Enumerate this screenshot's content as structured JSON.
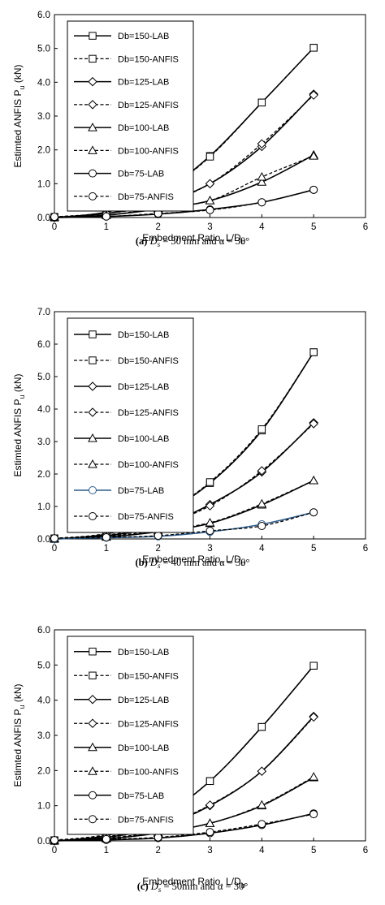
{
  "chart_data": [
    {
      "type": "line",
      "caption_letter": "(a)",
      "caption_sym": "D",
      "caption_sub": "s",
      "caption_rest": " = 30 mm and α = 30°",
      "xlabel_main": "Embedment Ratio, L/D",
      "xlabel_sub": "b",
      "ylabel_main": "Estimted ANFIS  P",
      "ylabel_sub": "u",
      "ylabel_unit": " (kN)",
      "xlim": [
        0,
        6
      ],
      "ylim": [
        0,
        6
      ],
      "x_ticks": [
        "0",
        "1",
        "2",
        "3",
        "4",
        "5",
        "6"
      ],
      "y_ticks": [
        "0.0",
        "1.0",
        "2.0",
        "3.0",
        "4.0",
        "5.0",
        "6.0"
      ],
      "x": [
        0,
        1,
        2,
        3,
        4,
        5
      ],
      "series": [
        {
          "name": "Db=150-LAB",
          "marker": "square",
          "dash": "solid",
          "color": "#000000",
          "values": [
            0.0,
            0.16,
            0.67,
            1.82,
            3.4,
            5.02
          ]
        },
        {
          "name": "Db=150-ANFIS",
          "marker": "square",
          "dash": "dashed",
          "color": "#000000",
          "values": [
            0.02,
            0.16,
            0.66,
            1.8,
            3.4,
            5.02
          ]
        },
        {
          "name": "Db=125-LAB",
          "marker": "diamond",
          "dash": "solid",
          "color": "#000000",
          "values": [
            0.0,
            0.12,
            0.4,
            1.0,
            2.1,
            3.65
          ]
        },
        {
          "name": "Db=125-ANFIS",
          "marker": "diamond",
          "dash": "dashed",
          "color": "#000000",
          "values": [
            0.02,
            0.12,
            0.38,
            1.0,
            2.18,
            3.62
          ]
        },
        {
          "name": "Db=100-LAB",
          "marker": "triangle",
          "dash": "solid",
          "color": "#000000",
          "values": [
            0.0,
            0.07,
            0.25,
            0.5,
            1.05,
            1.85
          ]
        },
        {
          "name": "Db=100-ANFIS",
          "marker": "triangle",
          "dash": "dashed",
          "color": "#000000",
          "values": [
            0.02,
            0.07,
            0.28,
            0.5,
            1.2,
            1.82
          ]
        },
        {
          "name": "Db=75-LAB",
          "marker": "circle",
          "dash": "solid",
          "color": "#000000",
          "values": [
            0.0,
            0.03,
            0.1,
            0.24,
            0.45,
            0.82
          ]
        },
        {
          "name": "Db=75-ANFIS",
          "marker": "circle",
          "dash": "dashed",
          "color": "#000000",
          "values": [
            0.02,
            0.03,
            0.12,
            0.22,
            0.45,
            0.82
          ]
        }
      ]
    },
    {
      "type": "line",
      "caption_letter": "(b)",
      "caption_sym": "D",
      "caption_sub": "s",
      "caption_rest": " = 40 mm and α = 30°",
      "xlabel_main": "Embedment Ratio, L/D",
      "xlabel_sub": "b",
      "ylabel_main": "Estimted ANFIS  P",
      "ylabel_sub": "u",
      "ylabel_unit": " (kN)",
      "xlim": [
        0,
        6
      ],
      "ylim": [
        0,
        7
      ],
      "x_ticks": [
        "0",
        "1",
        "2",
        "3",
        "4",
        "5",
        "6"
      ],
      "y_ticks": [
        "0.0",
        "1.0",
        "2.0",
        "3.0",
        "4.0",
        "5.0",
        "6.0",
        "7.0"
      ],
      "x": [
        0,
        1,
        2,
        3,
        4,
        5
      ],
      "series": [
        {
          "name": "Db=150-LAB",
          "marker": "square",
          "dash": "solid",
          "color": "#000000",
          "values": [
            0.0,
            0.15,
            0.7,
            1.72,
            3.34,
            5.75
          ]
        },
        {
          "name": "Db=150-ANFIS",
          "marker": "square",
          "dash": "dashed",
          "color": "#000000",
          "values": [
            0.02,
            0.17,
            0.7,
            1.75,
            3.38,
            5.75
          ]
        },
        {
          "name": "Db=125-LAB",
          "marker": "diamond",
          "dash": "solid",
          "color": "#000000",
          "values": [
            0.0,
            0.1,
            0.38,
            1.06,
            2.06,
            3.58
          ]
        },
        {
          "name": "Db=125-ANFIS",
          "marker": "diamond",
          "dash": "dashed",
          "color": "#000000",
          "values": [
            0.02,
            0.12,
            0.4,
            1.02,
            2.1,
            3.55
          ]
        },
        {
          "name": "Db=100-LAB",
          "marker": "triangle",
          "dash": "solid",
          "color": "#000000",
          "values": [
            0.0,
            0.06,
            0.22,
            0.48,
            1.05,
            1.8
          ]
        },
        {
          "name": "Db=100-ANFIS",
          "marker": "triangle",
          "dash": "dashed",
          "color": "#000000",
          "values": [
            0.02,
            0.08,
            0.26,
            0.5,
            1.08,
            1.8
          ]
        },
        {
          "name": "Db=75-LAB",
          "marker": "circle",
          "dash": "solid",
          "color": "#2e5d8c",
          "values": [
            0.0,
            0.04,
            0.08,
            0.22,
            0.45,
            0.82
          ]
        },
        {
          "name": "Db=75-ANFIS",
          "marker": "circle",
          "dash": "dashed",
          "color": "#000000",
          "values": [
            0.02,
            0.05,
            0.1,
            0.25,
            0.4,
            0.82
          ]
        }
      ]
    },
    {
      "type": "line",
      "caption_letter": "(c)",
      "caption_sym": "D",
      "caption_sub": "s",
      "caption_rest": " = 50mm and α = 30°",
      "xlabel_main": "Embedment Ratio, L/D",
      "xlabel_sub": "b",
      "ylabel_main": "Estimted ANFIS  P",
      "ylabel_sub": "u",
      "ylabel_unit": " (kN)",
      "xlim": [
        0,
        6
      ],
      "ylim": [
        0,
        6
      ],
      "x_ticks": [
        "0",
        "1",
        "2",
        "3",
        "4",
        "5",
        "6"
      ],
      "y_ticks": [
        "0.0",
        "1.0",
        "2.0",
        "3.0",
        "4.0",
        "5.0",
        "6.0"
      ],
      "x": [
        0,
        1,
        2,
        3,
        4,
        5
      ],
      "series": [
        {
          "name": "Db=150-LAB",
          "marker": "square",
          "dash": "solid",
          "color": "#000000",
          "values": [
            0.0,
            0.15,
            0.63,
            1.7,
            3.24,
            4.98
          ]
        },
        {
          "name": "Db=150-ANFIS",
          "marker": "square",
          "dash": "dashed",
          "color": "#000000",
          "values": [
            0.02,
            0.18,
            0.65,
            1.7,
            3.24,
            4.98
          ]
        },
        {
          "name": "Db=125-LAB",
          "marker": "diamond",
          "dash": "solid",
          "color": "#000000",
          "values": [
            0.0,
            0.1,
            0.38,
            1.0,
            1.98,
            3.54
          ]
        },
        {
          "name": "Db=125-ANFIS",
          "marker": "diamond",
          "dash": "dashed",
          "color": "#000000",
          "values": [
            0.02,
            0.12,
            0.4,
            1.02,
            1.98,
            3.52
          ]
        },
        {
          "name": "Db=100-LAB",
          "marker": "triangle",
          "dash": "solid",
          "color": "#000000",
          "values": [
            0.0,
            0.06,
            0.22,
            0.5,
            1.0,
            1.8
          ]
        },
        {
          "name": "Db=100-ANFIS",
          "marker": "triangle",
          "dash": "dashed",
          "color": "#000000",
          "values": [
            0.02,
            0.08,
            0.25,
            0.5,
            1.02,
            1.82
          ]
        },
        {
          "name": "Db=75-LAB",
          "marker": "circle",
          "dash": "solid",
          "color": "#000000",
          "values": [
            0.0,
            0.03,
            0.08,
            0.22,
            0.45,
            0.78
          ]
        },
        {
          "name": "Db=75-ANFIS",
          "marker": "circle",
          "dash": "dashed",
          "color": "#000000",
          "values": [
            0.02,
            0.05,
            0.1,
            0.25,
            0.48,
            0.76
          ]
        }
      ]
    }
  ]
}
